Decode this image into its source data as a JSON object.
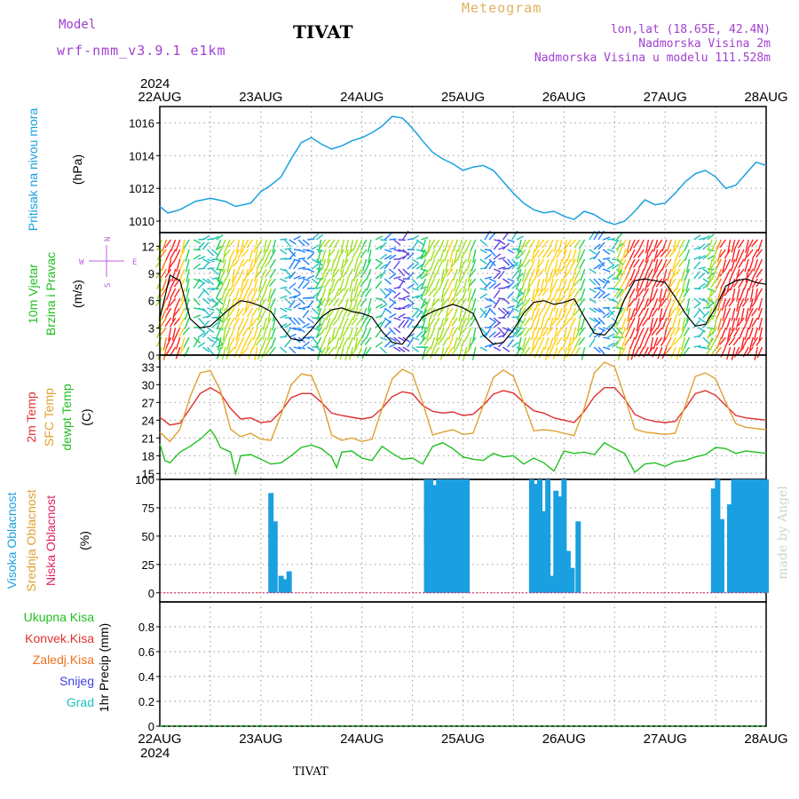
{
  "header": {
    "model_label": "Model",
    "model_name": "wrf-nmm_v3.9.1 e1km",
    "station": "TIVAT",
    "product": "Meteogram",
    "coords": "lon,lat (18.65E, 42.4N)",
    "altitude": "Nadmorska Visina 2m",
    "model_altitude": "Nadmorska Visina u modelu 111.528m",
    "footer_station": "TIVAT",
    "credit": "made by Angel"
  },
  "colors": {
    "pressure": "#1aa0e0",
    "t2m": "#e03030",
    "sfc": "#e0a030",
    "dewpt": "#20c020",
    "cloud_high": "#1aa0e0",
    "cloud_mid": "#e0a030",
    "cloud_low": "#e02060",
    "rain_total": "#20c020",
    "rain_conv": "#e03030",
    "freezing": "#f07020",
    "snow": "#4040e0",
    "grad": "#20c0c0",
    "wind_label": "#c060e0"
  },
  "time_axis": {
    "year": "2024",
    "labels": [
      "22AUG",
      "23AUG",
      "24AUG",
      "25AUG",
      "26AUG",
      "27AUG",
      "28AUG"
    ]
  },
  "panels": {
    "pressure": {
      "labels": [
        "Pritisak na nivou mora"
      ],
      "unit": "(hPa)"
    },
    "wind": {
      "labels": [
        "10m Vjetar",
        "Brzina i Pravac"
      ],
      "unit": "(m/s)",
      "compass": {
        "n": "N",
        "s": "S",
        "w": "W",
        "e": "E"
      }
    },
    "temp": {
      "labels": [
        "2m Temp",
        "SFC Temp",
        "dewpt Temp"
      ],
      "unit": "(C)"
    },
    "cloud": {
      "labels": [
        "Visoka Oblacnost",
        "Srednja Oblacnost",
        "Niska Oblacnost"
      ],
      "unit": "(%)"
    },
    "precip": {
      "labels": [
        "Ukupna Kisa",
        "Konvek.Kisa",
        "Zaledj.Kisa",
        "Snijeg",
        "Grad"
      ],
      "unit": "1hr Precip (mm)"
    }
  },
  "chart_data": [
    {
      "type": "line",
      "title": "",
      "ylabel": "(hPa)",
      "ylim": [
        1009.3,
        1017.0
      ],
      "yticks": [
        1010,
        1012,
        1014,
        1016
      ],
      "series": [
        {
          "name": "Pritisak na nivou mora",
          "x": [
            0,
            0.08,
            0.2,
            0.35,
            0.5,
            0.65,
            0.75,
            0.9,
            1.0,
            1.1,
            1.2,
            1.3,
            1.4,
            1.5,
            1.6,
            1.7,
            1.8,
            1.9,
            2.0,
            2.1,
            2.2,
            2.3,
            2.4,
            2.45,
            2.55,
            2.6,
            2.7,
            2.8,
            2.9,
            3.0,
            3.1,
            3.2,
            3.3,
            3.4,
            3.5,
            3.6,
            3.7,
            3.8,
            3.9,
            4.0,
            4.1,
            4.2,
            4.3,
            4.4,
            4.5,
            4.6,
            4.7,
            4.8,
            4.9,
            5.0,
            5.1,
            5.2,
            5.3,
            5.4,
            5.5,
            5.6,
            5.7,
            5.8,
            5.9,
            6.0
          ],
          "values": [
            1010.9,
            1010.5,
            1010.7,
            1011.2,
            1011.4,
            1011.2,
            1010.9,
            1011.1,
            1011.8,
            1012.2,
            1012.7,
            1013.8,
            1014.8,
            1015.1,
            1014.7,
            1014.4,
            1014.6,
            1014.9,
            1015.1,
            1015.4,
            1015.8,
            1016.4,
            1016.3,
            1016.0,
            1015.3,
            1014.9,
            1014.2,
            1013.8,
            1013.5,
            1013.1,
            1013.3,
            1013.4,
            1013.1,
            1012.4,
            1011.7,
            1011.1,
            1010.7,
            1010.5,
            1010.6,
            1010.3,
            1010.1,
            1010.6,
            1010.4,
            1010.0,
            1009.8,
            1010.0,
            1010.6,
            1011.3,
            1011.0,
            1011.1,
            1011.7,
            1012.4,
            1012.9,
            1013.1,
            1012.7,
            1012.0,
            1012.2,
            1012.9,
            1013.6,
            1013.4
          ]
        }
      ]
    },
    {
      "type": "line",
      "title": "",
      "ylabel": "(m/s)",
      "ylim": [
        0,
        13.5
      ],
      "yticks": [
        0,
        3,
        6,
        9,
        12
      ],
      "series": [
        {
          "name": "10m Vjetar",
          "x": [
            0,
            0.1,
            0.2,
            0.3,
            0.4,
            0.5,
            0.6,
            0.7,
            0.8,
            0.9,
            1.0,
            1.1,
            1.2,
            1.3,
            1.4,
            1.5,
            1.6,
            1.7,
            1.8,
            1.9,
            2.0,
            2.1,
            2.2,
            2.3,
            2.4,
            2.5,
            2.6,
            2.7,
            2.8,
            2.9,
            3.0,
            3.1,
            3.2,
            3.3,
            3.4,
            3.5,
            3.6,
            3.7,
            3.8,
            3.9,
            4.0,
            4.1,
            4.2,
            4.3,
            4.4,
            4.5,
            4.6,
            4.7,
            4.8,
            4.9,
            5.0,
            5.1,
            5.2,
            5.3,
            5.4,
            5.5,
            5.6,
            5.7,
            5.8,
            5.9,
            6.0
          ],
          "values": [
            4,
            8.8,
            8.2,
            4,
            3,
            3.2,
            4.2,
            5.2,
            6,
            5.8,
            5.4,
            4.8,
            3.2,
            1.8,
            1.6,
            2.8,
            4.2,
            5,
            5.2,
            4.8,
            4.6,
            4.2,
            2.6,
            1.4,
            1.2,
            2.6,
            4.2,
            4.8,
            5.2,
            5.6,
            5.2,
            4.6,
            2.2,
            1.2,
            1.4,
            2.8,
            4.6,
            5.8,
            6,
            5.6,
            5.8,
            6.2,
            4.2,
            2.4,
            2.2,
            3.4,
            6.2,
            8.2,
            8.4,
            8.2,
            8.0,
            6.4,
            4.6,
            3.2,
            3.4,
            5.2,
            7.6,
            8.2,
            8.4,
            8.0,
            7.8
          ]
        }
      ]
    },
    {
      "type": "line",
      "title": "",
      "ylabel": "(C)",
      "ylim": [
        14,
        35
      ],
      "yticks": [
        15,
        18,
        21,
        24,
        27,
        30,
        33
      ],
      "series": [
        {
          "name": "2m Temp",
          "x": [
            0,
            0.1,
            0.2,
            0.3,
            0.4,
            0.5,
            0.6,
            0.7,
            0.8,
            0.9,
            1.0,
            1.1,
            1.2,
            1.3,
            1.4,
            1.5,
            1.6,
            1.7,
            1.8,
            1.9,
            2.0,
            2.1,
            2.2,
            2.3,
            2.4,
            2.5,
            2.6,
            2.7,
            2.8,
            2.9,
            3.0,
            3.1,
            3.2,
            3.3,
            3.4,
            3.5,
            3.6,
            3.7,
            3.8,
            3.9,
            4.0,
            4.1,
            4.2,
            4.3,
            4.4,
            4.5,
            4.6,
            4.7,
            4.8,
            4.9,
            5.0,
            5.1,
            5.2,
            5.3,
            5.4,
            5.5,
            5.6,
            5.7,
            5.8,
            5.9,
            6.0
          ],
          "values": [
            24.5,
            23.2,
            23.5,
            26,
            28.5,
            29.5,
            28.5,
            26,
            24.2,
            24.4,
            23.6,
            23.8,
            25.5,
            27.8,
            28.5,
            28.5,
            27,
            25.2,
            24.8,
            24.5,
            24.2,
            24.5,
            26,
            28,
            28.8,
            28.5,
            26.5,
            25.5,
            25.2,
            25.4,
            24.8,
            25,
            26.5,
            28.4,
            29,
            28.6,
            27,
            25.6,
            25.2,
            24.4,
            24,
            23.6,
            25.5,
            28,
            29.5,
            29.5,
            27.6,
            25,
            24.2,
            23.8,
            23.6,
            23.8,
            26,
            28.5,
            29,
            28.2,
            26.5,
            24.8,
            24.4,
            24.2,
            24.0
          ]
        },
        {
          "name": "SFC Temp",
          "x": [
            0,
            0.1,
            0.2,
            0.3,
            0.4,
            0.5,
            0.6,
            0.7,
            0.8,
            0.9,
            1.0,
            1.1,
            1.2,
            1.3,
            1.4,
            1.5,
            1.6,
            1.7,
            1.8,
            1.9,
            2.0,
            2.1,
            2.2,
            2.3,
            2.4,
            2.5,
            2.6,
            2.7,
            2.8,
            2.9,
            3.0,
            3.1,
            3.2,
            3.3,
            3.4,
            3.5,
            3.6,
            3.7,
            3.8,
            3.9,
            4.0,
            4.1,
            4.2,
            4.3,
            4.4,
            4.5,
            4.6,
            4.7,
            4.8,
            4.9,
            5.0,
            5.1,
            5.2,
            5.3,
            5.4,
            5.5,
            5.6,
            5.7,
            5.8,
            5.9,
            6.0
          ],
          "values": [
            22,
            20.4,
            22.5,
            28,
            32,
            32.4,
            29,
            22.5,
            21.2,
            21.8,
            20.8,
            20.6,
            25,
            30,
            31.8,
            31.5,
            27.5,
            21.5,
            20.6,
            21,
            20.4,
            20.8,
            26,
            31,
            32.6,
            31.8,
            27,
            21.5,
            22,
            22.4,
            21.6,
            21.8,
            26.5,
            31.2,
            32.5,
            31.4,
            27,
            22.2,
            22.4,
            22.2,
            21.8,
            21.4,
            26,
            32,
            33.8,
            33,
            28,
            22.5,
            22,
            21.8,
            21.6,
            21.8,
            26.5,
            31.4,
            32,
            31,
            27,
            23.4,
            22.8,
            22.6,
            22.4
          ]
        },
        {
          "name": "dewpt Temp",
          "x": [
            0,
            0.05,
            0.1,
            0.2,
            0.3,
            0.4,
            0.5,
            0.55,
            0.6,
            0.7,
            0.75,
            0.8,
            0.9,
            1.0,
            1.1,
            1.2,
            1.3,
            1.4,
            1.5,
            1.6,
            1.7,
            1.75,
            1.8,
            1.9,
            2.0,
            2.1,
            2.2,
            2.3,
            2.4,
            2.5,
            2.6,
            2.7,
            2.8,
            2.9,
            3.0,
            3.1,
            3.2,
            3.3,
            3.4,
            3.5,
            3.6,
            3.7,
            3.8,
            3.9,
            4.0,
            4.1,
            4.2,
            4.3,
            4.4,
            4.5,
            4.6,
            4.7,
            4.8,
            4.9,
            5.0,
            5.1,
            5.2,
            5.3,
            5.4,
            5.5,
            5.6,
            5.7,
            5.8,
            5.9,
            6.0
          ],
          "values": [
            20,
            17.2,
            16.8,
            18.6,
            19.6,
            20.8,
            22.4,
            21.2,
            19.4,
            18.6,
            15,
            18,
            18.2,
            17.4,
            16.6,
            16.8,
            18,
            19.4,
            19.8,
            19.2,
            17.8,
            16,
            18.6,
            18.8,
            17.6,
            17.2,
            19.6,
            18.4,
            17.4,
            17.6,
            16.6,
            19.6,
            20.2,
            19.2,
            17.8,
            17.4,
            17.2,
            18.4,
            17.8,
            18,
            16.6,
            17.6,
            16.8,
            15.4,
            18.8,
            18.4,
            18.6,
            18.2,
            20.2,
            19.2,
            18.4,
            15.2,
            16.6,
            16.8,
            16.2,
            17.0,
            17.2,
            17.8,
            18.2,
            19.4,
            19.2,
            18.4,
            18.8,
            18.6,
            18.4
          ]
        }
      ]
    },
    {
      "type": "bar",
      "title": "",
      "ylabel": "(%)",
      "ylim": [
        -8,
        100
      ],
      "yticks": [
        0,
        25,
        50,
        75,
        100
      ],
      "series": [
        {
          "name": "Visoka Oblacnost",
          "x": [
            1.1,
            1.14,
            1.2,
            1.24,
            1.28,
            2.64,
            2.68,
            2.72,
            2.76,
            2.8,
            2.84,
            2.88,
            2.92,
            2.96,
            3.0,
            3.04,
            3.68,
            3.72,
            3.76,
            3.8,
            3.84,
            3.88,
            3.92,
            3.96,
            4.0,
            4.04,
            4.08,
            4.14,
            5.48,
            5.52,
            5.56,
            5.64,
            5.68,
            5.72,
            5.76,
            5.8,
            5.84,
            5.88,
            5.92,
            5.96,
            6.0
          ],
          "values": [
            88,
            63,
            15,
            12,
            19,
            100,
            100,
            95,
            100,
            100,
            100,
            100,
            100,
            100,
            100,
            100,
            100,
            96,
            100,
            72,
            100,
            15,
            90,
            85,
            100,
            37,
            22,
            63,
            92,
            100,
            65,
            78,
            100,
            100,
            100,
            100,
            100,
            100,
            100,
            100,
            100
          ]
        }
      ]
    },
    {
      "type": "line",
      "title": "",
      "ylabel": "1hr Precip (mm)",
      "ylim": [
        0,
        1.0
      ],
      "yticks": [
        0,
        0.2,
        0.4,
        0.6,
        0.8
      ],
      "series": [
        {
          "name": "Ukupna Kisa",
          "x": [
            0,
            6
          ],
          "values": [
            0,
            0
          ]
        }
      ]
    }
  ]
}
